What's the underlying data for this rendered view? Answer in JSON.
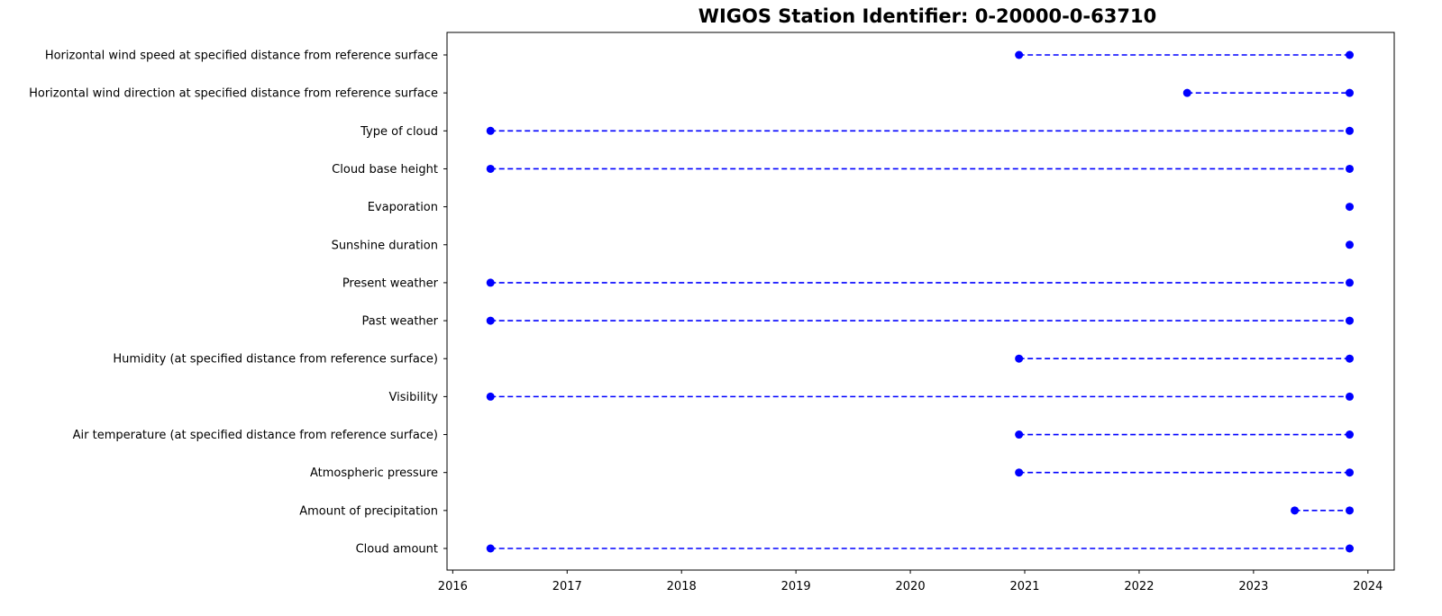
{
  "chart_data": {
    "type": "scatter",
    "title": "WIGOS Station Identifier: 0-20000-0-63710",
    "xlabel": "",
    "ylabel": "",
    "xlim": [
      2015.95,
      2024.23
    ],
    "x_ticks": [
      "2016",
      "2017",
      "2018",
      "2019",
      "2020",
      "2021",
      "2022",
      "2023",
      "2024"
    ],
    "grid": false,
    "marker_color": "#0000ff",
    "line_style": "dashed",
    "categories": [
      "Horizontal wind speed at specified distance from reference surface",
      "Horizontal wind direction at specified distance from reference surface",
      "Type of cloud",
      "Cloud base height",
      "Evaporation",
      "Sunshine duration",
      "Present weather",
      "Past weather",
      "Humidity (at specified distance from reference surface)",
      "Visibility",
      "Air temperature (at specified distance from reference surface)",
      "Atmospheric pressure",
      "Amount of precipitation",
      "Cloud amount"
    ],
    "series": [
      {
        "x": [
          2020.95,
          2023.84
        ]
      },
      {
        "x": [
          2022.42,
          2023.84
        ]
      },
      {
        "x": [
          2016.33,
          2023.84
        ]
      },
      {
        "x": [
          2016.33,
          2023.84
        ]
      },
      {
        "x": [
          2023.84
        ]
      },
      {
        "x": [
          2023.84
        ]
      },
      {
        "x": [
          2016.33,
          2023.84
        ]
      },
      {
        "x": [
          2016.33,
          2023.84
        ]
      },
      {
        "x": [
          2020.95,
          2023.84
        ]
      },
      {
        "x": [
          2016.33,
          2023.84
        ]
      },
      {
        "x": [
          2020.95,
          2023.84
        ]
      },
      {
        "x": [
          2020.95,
          2023.84
        ]
      },
      {
        "x": [
          2023.36,
          2023.84
        ]
      },
      {
        "x": [
          2016.33,
          2023.84
        ]
      }
    ]
  }
}
